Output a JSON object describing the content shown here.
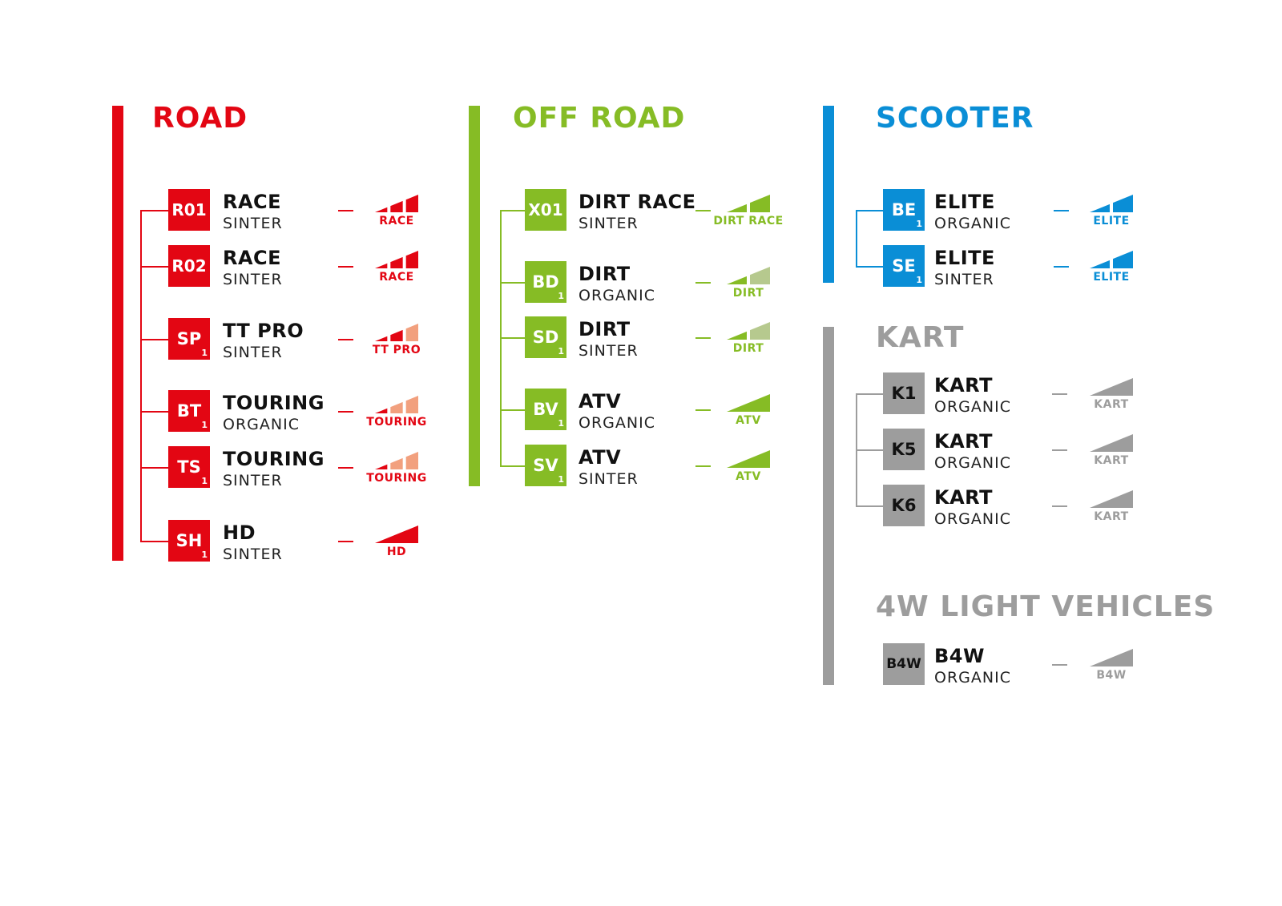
{
  "colors": {
    "road": "#e30613",
    "road_light": "#f2a07e",
    "offroad": "#86bc25",
    "offroad_light": "#b6c98e",
    "scooter": "#0a8ed6",
    "kart": "#9d9d9d"
  },
  "sections": [
    {
      "id": "road",
      "title": "ROAD",
      "color": "#e30613",
      "light": "#f2a07e",
      "rows": [
        {
          "code": "R01",
          "sub": "",
          "name": "RACE",
          "material": "SINTER",
          "meter": {
            "label": "RACE",
            "segments": 3,
            "filled": 3
          }
        },
        {
          "code": "R02",
          "sub": "",
          "name": "RACE",
          "material": "SINTER",
          "meter": {
            "label": "RACE",
            "segments": 3,
            "filled": 3
          }
        },
        {
          "code": "SP",
          "sub": "1",
          "name": "TT PRO",
          "material": "SINTER",
          "meter": {
            "label": "TT PRO",
            "segments": 3,
            "filled": 2
          }
        },
        {
          "code": "BT",
          "sub": "1",
          "name": "TOURING",
          "material": "ORGANIC",
          "meter": {
            "label": "TOURING",
            "segments": 3,
            "filled": 1
          }
        },
        {
          "code": "TS",
          "sub": "1",
          "name": "TOURING",
          "material": "SINTER",
          "meter": {
            "label": "TOURING",
            "segments": 3,
            "filled": 1
          }
        },
        {
          "code": "SH",
          "sub": "1",
          "name": "HD",
          "material": "SINTER",
          "meter": {
            "label": "HD",
            "segments": 1,
            "filled": 1
          }
        }
      ]
    },
    {
      "id": "offroad",
      "title": "OFF ROAD",
      "color": "#86bc25",
      "light": "#b6c98e",
      "rows": [
        {
          "code": "X01",
          "sub": "",
          "name": "DIRT RACE",
          "material": "SINTER",
          "meter": {
            "label": "DIRT RACE",
            "segments": 2,
            "filled": 2
          }
        },
        {
          "code": "BD",
          "sub": "1",
          "name": "DIRT",
          "material": "ORGANIC",
          "meter": {
            "label": "DIRT",
            "segments": 2,
            "filled": 1
          }
        },
        {
          "code": "SD",
          "sub": "1",
          "name": "DIRT",
          "material": "SINTER",
          "meter": {
            "label": "DIRT",
            "segments": 2,
            "filled": 1
          }
        },
        {
          "code": "BV",
          "sub": "1",
          "name": "ATV",
          "material": "ORGANIC",
          "meter": {
            "label": "ATV",
            "segments": 1,
            "filled": 1
          }
        },
        {
          "code": "SV",
          "sub": "1",
          "name": "ATV",
          "material": "SINTER",
          "meter": {
            "label": "ATV",
            "segments": 1,
            "filled": 1
          }
        }
      ]
    },
    {
      "id": "scooter",
      "title": "SCOOTER",
      "color": "#0a8ed6",
      "light": "#0a8ed6",
      "rows": [
        {
          "code": "BE",
          "sub": "1",
          "name": "ELITE",
          "material": "ORGANIC",
          "meter": {
            "label": "ELITE",
            "segments": 2,
            "filled": 2
          }
        },
        {
          "code": "SE",
          "sub": "1",
          "name": "ELITE",
          "material": "SINTER",
          "meter": {
            "label": "ELITE",
            "segments": 2,
            "filled": 2
          }
        }
      ]
    },
    {
      "id": "kart",
      "title": "KART",
      "color": "#9d9d9d",
      "light": "#9d9d9d",
      "rows": [
        {
          "code": "K1",
          "sub": "",
          "name": "KART",
          "material": "ORGANIC",
          "meter": {
            "label": "KART",
            "segments": 1,
            "filled": 1
          }
        },
        {
          "code": "K5",
          "sub": "",
          "name": "KART",
          "material": "ORGANIC",
          "meter": {
            "label": "KART",
            "segments": 1,
            "filled": 1
          }
        },
        {
          "code": "K6",
          "sub": "",
          "name": "KART",
          "material": "ORGANIC",
          "meter": {
            "label": "KART",
            "segments": 1,
            "filled": 1
          }
        }
      ]
    },
    {
      "id": "light4w",
      "title": "4W LIGHT VEHICLES",
      "color": "#9d9d9d",
      "light": "#9d9d9d",
      "rows": [
        {
          "code": "B4W",
          "sub": "",
          "name": "B4W",
          "material": "ORGANIC",
          "meter": {
            "label": "B4W",
            "segments": 1,
            "filled": 1
          }
        }
      ]
    }
  ]
}
